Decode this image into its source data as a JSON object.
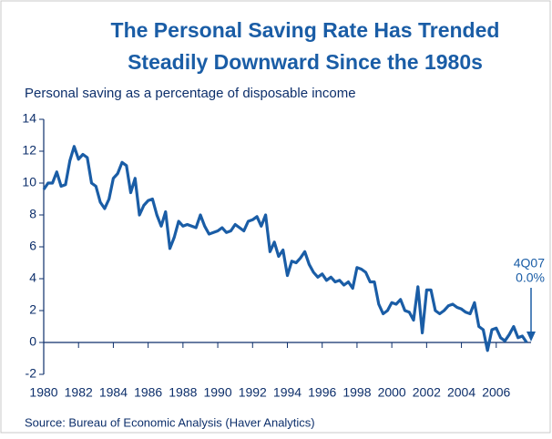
{
  "chart_data": {
    "type": "line",
    "title": [
      "The Personal Saving Rate Has Trended",
      "Steadily Downward Since the 1980s"
    ],
    "subtitle": "Personal saving as a percentage of disposable income",
    "source": "Source: Bureau of Economic Analysis (Haver Analytics)",
    "annotation": [
      "4Q07",
      "0.0%"
    ],
    "color": "#1a5da6",
    "x": [
      1980,
      1980.25,
      1980.5,
      1980.75,
      1981,
      1981.25,
      1981.5,
      1981.75,
      1982,
      1982.25,
      1982.5,
      1982.75,
      1983,
      1983.25,
      1983.5,
      1983.75,
      1984,
      1984.25,
      1984.5,
      1984.75,
      1985,
      1985.25,
      1985.5,
      1985.75,
      1986,
      1986.25,
      1986.5,
      1986.75,
      1987,
      1987.25,
      1987.5,
      1987.75,
      1988,
      1988.25,
      1988.5,
      1988.75,
      1989,
      1989.25,
      1989.5,
      1989.75,
      1990,
      1990.25,
      1990.5,
      1990.75,
      1991,
      1991.25,
      1991.5,
      1991.75,
      1992,
      1992.25,
      1992.5,
      1992.75,
      1993,
      1993.25,
      1993.5,
      1993.75,
      1994,
      1994.25,
      1994.5,
      1994.75,
      1995,
      1995.25,
      1995.5,
      1995.75,
      1996,
      1996.25,
      1996.5,
      1996.75,
      1997,
      1997.25,
      1997.5,
      1997.75,
      1998,
      1998.25,
      1998.5,
      1998.75,
      1999,
      1999.25,
      1999.5,
      1999.75,
      2000,
      2000.25,
      2000.5,
      2000.75,
      2001,
      2001.25,
      2001.5,
      2001.75,
      2002,
      2002.25,
      2002.5,
      2002.75,
      2003,
      2003.25,
      2003.5,
      2003.75,
      2004,
      2004.25,
      2004.5,
      2004.75,
      2005,
      2005.25,
      2005.5,
      2005.75,
      2006,
      2006.25,
      2006.5,
      2006.75,
      2007,
      2007.25,
      2007.5,
      2007.75
    ],
    "values": [
      9.6,
      10.0,
      10.0,
      10.7,
      9.8,
      9.9,
      11.4,
      12.3,
      11.5,
      11.8,
      11.6,
      10.0,
      9.8,
      8.8,
      8.4,
      9.0,
      10.3,
      10.6,
      11.3,
      11.1,
      9.4,
      10.3,
      8.0,
      8.6,
      8.9,
      9.0,
      8.0,
      7.3,
      8.2,
      5.9,
      6.6,
      7.6,
      7.3,
      7.4,
      7.3,
      7.2,
      8.0,
      7.3,
      6.8,
      6.9,
      7.0,
      7.2,
      6.9,
      7.0,
      7.4,
      7.2,
      7.0,
      7.6,
      7.7,
      7.9,
      7.3,
      8.0,
      5.7,
      6.3,
      5.4,
      5.8,
      4.2,
      5.1,
      5.0,
      5.3,
      5.7,
      4.9,
      4.4,
      4.1,
      4.3,
      3.9,
      4.1,
      3.8,
      3.9,
      3.6,
      3.8,
      3.4,
      4.7,
      4.6,
      4.4,
      3.8,
      3.8,
      2.4,
      1.8,
      2.0,
      2.5,
      2.4,
      2.7,
      2.0,
      1.9,
      1.4,
      3.5,
      0.6,
      3.3,
      3.3,
      2.0,
      1.8,
      2.0,
      2.3,
      2.4,
      2.2,
      2.1,
      1.9,
      1.8,
      2.5,
      1.0,
      0.8,
      -0.5,
      0.8,
      0.9,
      0.3,
      0.1,
      0.5,
      1.0,
      0.3,
      0.4,
      0.0
    ],
    "xlim": [
      1980,
      2008
    ],
    "xticks": [
      1980,
      1982,
      1984,
      1986,
      1988,
      1990,
      1992,
      1994,
      1996,
      1998,
      2000,
      2002,
      2004,
      2006
    ],
    "ylim": [
      -2,
      14
    ],
    "yticks": [
      -2,
      0,
      2,
      4,
      6,
      8,
      10,
      12,
      14
    ]
  }
}
